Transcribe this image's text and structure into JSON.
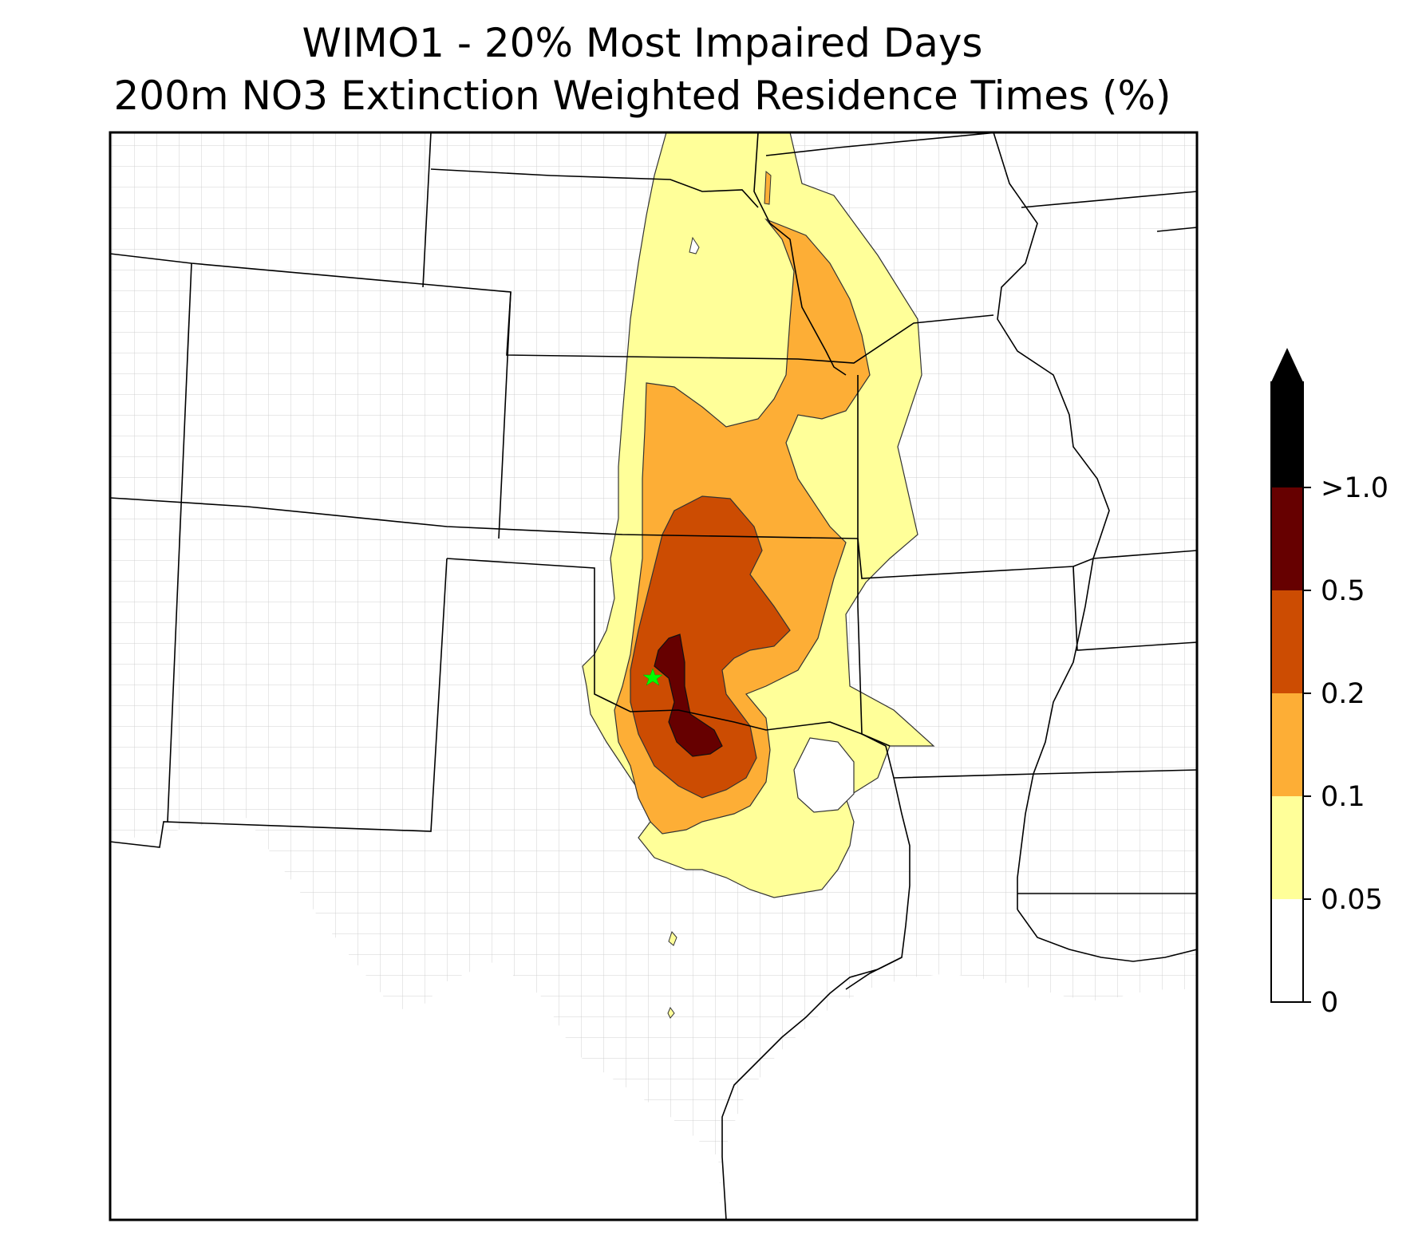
{
  "figure": {
    "title_line1": "WIMO1 - 20% Most Impaired Days",
    "title_line2": "200m NO3 Extinction Weighted Residence Times (%)"
  },
  "colorbar": {
    "extend": "max",
    "bins": [
      {
        "from": "0",
        "to": "0.05",
        "color": "#ffffff"
      },
      {
        "from": "0.05",
        "to": "0.1",
        "color": "#ffff99"
      },
      {
        "from": "0.1",
        "to": "0.2",
        "color": "#fdae36"
      },
      {
        "from": "0.2",
        "to": "0.5",
        "color": "#cc4c02"
      },
      {
        "from": "0.5",
        "to": ">1.0",
        "color": "#660000"
      }
    ],
    "overflow_color": "#000000",
    "tick_labels": [
      "0",
      "0.05",
      "0.1",
      "0.2",
      "0.5",
      ">1.0"
    ]
  },
  "map": {
    "region": "South-central United States",
    "receptor_marker": {
      "symbol": "star",
      "color": "#00ff00",
      "site": "WIMO1"
    },
    "colors": {
      "state_border": "#000000",
      "county_border": "#aaaaaa",
      "background": "#ffffff"
    }
  }
}
